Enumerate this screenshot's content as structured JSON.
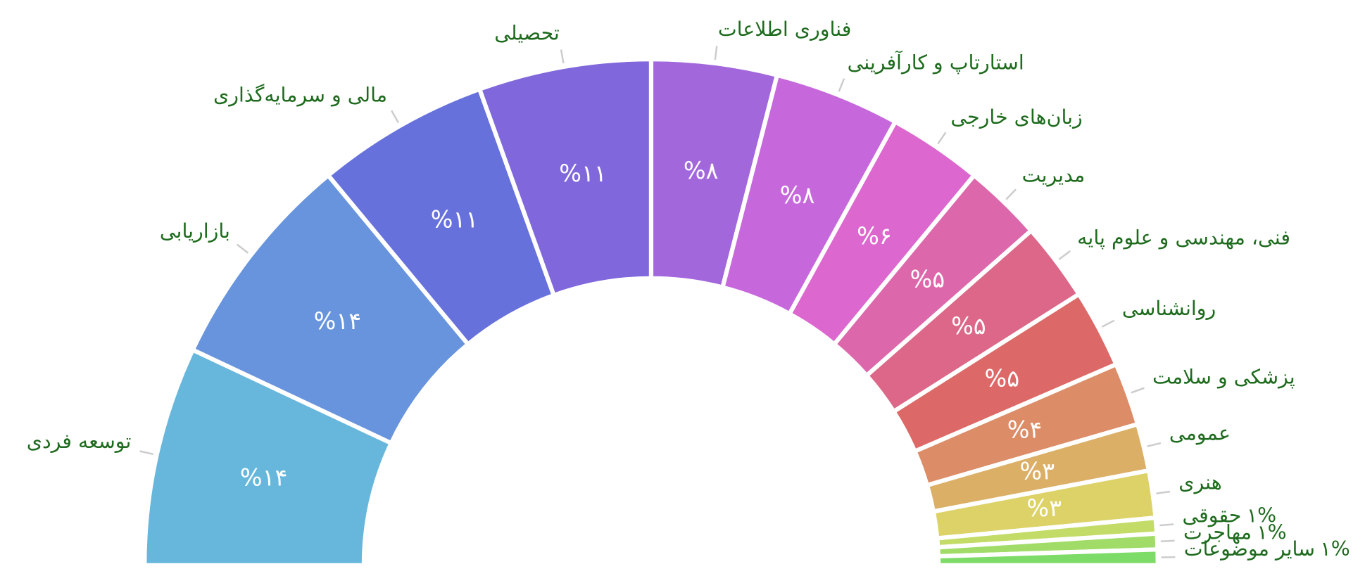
{
  "chart_data": {
    "type": "semi-donut",
    "categories": [
      "توسعه فردی",
      "بازاریابی",
      "مالی و سرمایه‌گذاری",
      "تحصیلی",
      "فناوری اطلاعات",
      "استارتاپ و کارآفرینی",
      "زبان‌های خارجی",
      "مدیریت",
      "فنی، مهندسی و علوم پایه",
      "روانشناسی",
      "پزشکی و سلامت",
      "عمومی",
      "هنری",
      "حقوقی",
      "مهاجرت",
      "سایر موضوعات"
    ],
    "values": [
      14,
      14,
      11,
      11,
      8,
      8,
      6,
      5,
      5,
      5,
      4,
      3,
      3,
      1,
      1,
      1
    ],
    "value_labels": [
      "%۱۴",
      "%۱۴",
      "%۱۱",
      "%۱۱",
      "%۸",
      "%۸",
      "%۶",
      "%۵",
      "%۵",
      "%۵",
      "%۴",
      "%۳",
      "%۳",
      "۱%",
      "۱%",
      "۱%"
    ],
    "colors": [
      "#67b7dc",
      "#6794dc",
      "#6771dc",
      "#8067dc",
      "#a367dc",
      "#c767dc",
      "#dc67ce",
      "#dc67ab",
      "#dc6788",
      "#dc6967",
      "#dc8c67",
      "#dcaf67",
      "#dcd267",
      "#c3dc67",
      "#a0dc67",
      "#7ddc67"
    ]
  }
}
